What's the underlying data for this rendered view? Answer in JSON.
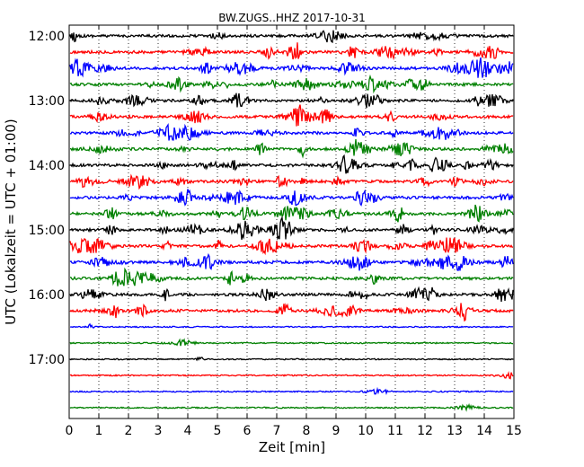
{
  "chart_data": {
    "type": "line",
    "title": "BW.ZUGS..HHZ 2017-10-31",
    "xlabel": "Zeit  [min]",
    "ylabel": "UTC (Lokalzeit = UTC + 01:00)",
    "xlim": [
      0,
      15
    ],
    "x_ticks": [
      "0",
      "1",
      "2",
      "3",
      "4",
      "5",
      "6",
      "7",
      "8",
      "9",
      "10",
      "11",
      "12",
      "13",
      "14",
      "15"
    ],
    "y_tick_labels": [
      "12:00",
      "13:00",
      "14:00",
      "15:00",
      "16:00",
      "17:00"
    ],
    "grid": "vertical dotted",
    "series_colors": [
      "#000000",
      "#ff0000",
      "#0000ff",
      "#008000"
    ],
    "trace_rows": [
      {
        "start": "12:00",
        "color": "#000000"
      },
      {
        "start": "12:15",
        "color": "#ff0000"
      },
      {
        "start": "12:30",
        "color": "#0000ff"
      },
      {
        "start": "12:45",
        "color": "#008000"
      },
      {
        "start": "13:00",
        "color": "#000000"
      },
      {
        "start": "13:15",
        "color": "#ff0000"
      },
      {
        "start": "13:30",
        "color": "#0000ff"
      },
      {
        "start": "13:45",
        "color": "#008000"
      },
      {
        "start": "14:00",
        "color": "#000000"
      },
      {
        "start": "14:15",
        "color": "#ff0000"
      },
      {
        "start": "14:30",
        "color": "#0000ff"
      },
      {
        "start": "14:45",
        "color": "#008000"
      },
      {
        "start": "15:00",
        "color": "#000000"
      },
      {
        "start": "15:15",
        "color": "#ff0000"
      },
      {
        "start": "15:30",
        "color": "#0000ff"
      },
      {
        "start": "15:45",
        "color": "#008000"
      },
      {
        "start": "16:00",
        "color": "#000000"
      },
      {
        "start": "16:15",
        "color": "#ff0000"
      },
      {
        "start": "16:30",
        "color": "#0000ff"
      },
      {
        "start": "16:45",
        "color": "#008000"
      },
      {
        "start": "17:00",
        "color": "#000000"
      },
      {
        "start": "17:15",
        "color": "#ff0000"
      },
      {
        "start": "17:30",
        "color": "#0000ff"
      },
      {
        "start": "17:45",
        "color": "#008000"
      }
    ]
  }
}
